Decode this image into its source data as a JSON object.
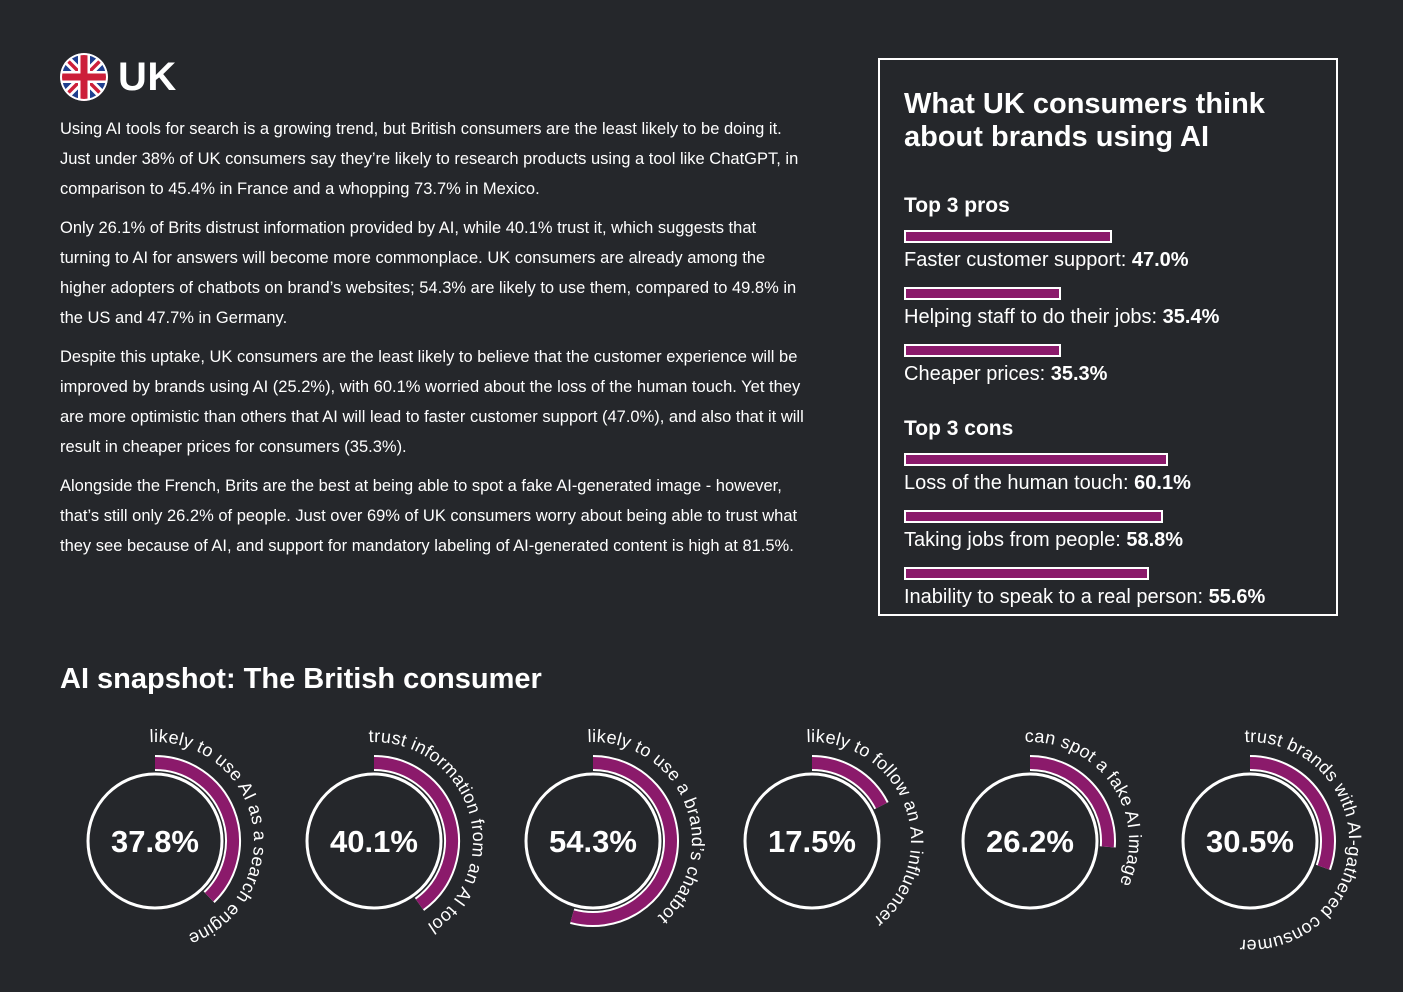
{
  "header": {
    "country": "UK",
    "flag_icon": "uk-flag-icon"
  },
  "colors": {
    "background": "#25272b",
    "accent": "#8b1a6b",
    "text": "#ffffff"
  },
  "article": {
    "p1": "Using AI tools for search is a growing trend, but British consumers are the least likely to be doing it. Just under 38% of UK consumers say they’re likely to research products using a tool like ChatGPT, in comparison to 45.4% in France and a whopping 73.7% in Mexico.",
    "p2": "Only 26.1% of Brits distrust information provided by AI, while 40.1% trust it, which suggests that turning to AI for answers will become more commonplace. UK consumers are already among the higher adopters of chatbots on brand’s websites; 54.3% are likely to use them, compared to 49.8% in the US and 47.7% in Germany.",
    "p3": "Despite this uptake, UK consumers are the least likely to believe that the customer experience will be improved by brands using AI (25.2%), with 60.1% worried about the loss of the human touch. Yet they are more optimistic than others that AI will lead to faster customer support (47.0%), and also that it will result in cheaper prices for consumers (35.3%).",
    "p4": "Alongside the French, Brits are the best at being able to spot a fake AI-generated image - however, that’s still only 26.2% of people. Just over 69% of UK consumers worry about being able to trust what they see because of AI, and support for mandatory labeling of AI-generated content is high at 81.5%."
  },
  "box": {
    "title": "What UK consumers think about brands using AI",
    "pros_title": "Top 3 pros",
    "cons_title": "Top 3 cons"
  },
  "snapshot": {
    "title": "AI snapshot: The British consumer"
  },
  "chart_data": [
    {
      "type": "bar",
      "title": "Top 3 pros",
      "unit": "%",
      "items": [
        {
          "label": "Faster customer support:",
          "value": 47.0,
          "display": "47.0%"
        },
        {
          "label": "Helping staff to do their jobs:",
          "value": 35.4,
          "display": "35.4%"
        },
        {
          "label": "Cheaper prices:",
          "value": 35.3,
          "display": "35.3%"
        }
      ]
    },
    {
      "type": "bar",
      "title": "Top 3 cons",
      "unit": "%",
      "items": [
        {
          "label": "Loss of the human touch:",
          "value": 60.1,
          "display": "60.1%"
        },
        {
          "label": "Taking jobs from people:",
          "value": 58.8,
          "display": "58.8%"
        },
        {
          "label": "Inability to speak to a real person:",
          "value": 55.6,
          "display": "55.6%"
        }
      ]
    },
    {
      "type": "radial",
      "title": "AI snapshot: The British consumer",
      "unit": "%",
      "items": [
        {
          "value": 37.8,
          "display": "37.8%",
          "label": "likely to use AI as a search engine"
        },
        {
          "value": 40.1,
          "display": "40.1%",
          "label": "trust information from an AI tool"
        },
        {
          "value": 54.3,
          "display": "54.3%",
          "label": "likely to use a brand’s chatbot"
        },
        {
          "value": 17.5,
          "display": "17.5%",
          "label": "likely to follow an AI influencer"
        },
        {
          "value": 26.2,
          "display": "26.2%",
          "label": "can spot a fake AI image"
        },
        {
          "value": 30.5,
          "display": "30.5%",
          "label": "trust brands with AI-gathered consumer data"
        }
      ]
    }
  ]
}
